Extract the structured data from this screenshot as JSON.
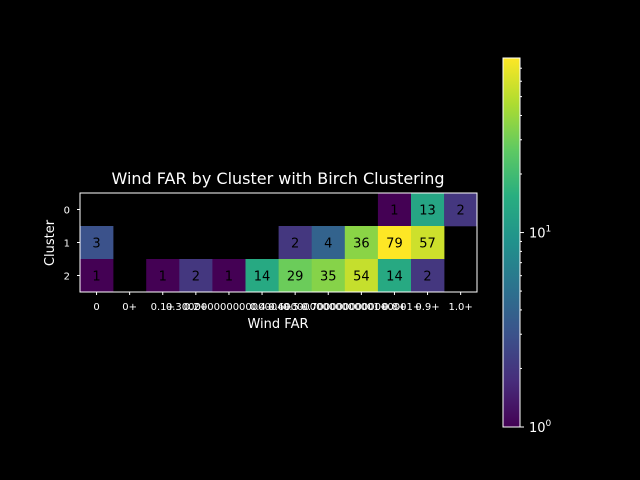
{
  "chart_data": {
    "type": "heatmap",
    "title": "Wind FAR by Cluster with Birch Clustering",
    "xlabel": "Wind FAR",
    "ylabel": "Cluster",
    "x_tick_labels": [
      "0",
      "0+",
      "0.1+",
      "0.2+",
      "0.30000000000000004+",
      "0.4+",
      "0.5+",
      "0.6000000000000001+",
      "0.7000000000000001+",
      "0.8+",
      "0.9+",
      "1.0+"
    ],
    "y_tick_labels": [
      "0",
      "1",
      "2"
    ],
    "rows": [
      [
        null,
        null,
        null,
        null,
        null,
        null,
        null,
        null,
        null,
        1,
        13,
        2
      ],
      [
        3,
        null,
        null,
        null,
        null,
        null,
        2,
        4,
        36,
        79,
        57,
        null
      ],
      [
        1,
        null,
        1,
        2,
        1,
        14,
        29,
        35,
        54,
        14,
        2,
        null
      ]
    ],
    "colorscale": "viridis",
    "color_scale_type": "log",
    "color_range": [
      1,
      79
    ],
    "colorbar_ticks": [
      "10^0",
      "10^1"
    ],
    "background_color": "#000000",
    "text_color": "#ffffff",
    "annotation_color": "#000000"
  }
}
